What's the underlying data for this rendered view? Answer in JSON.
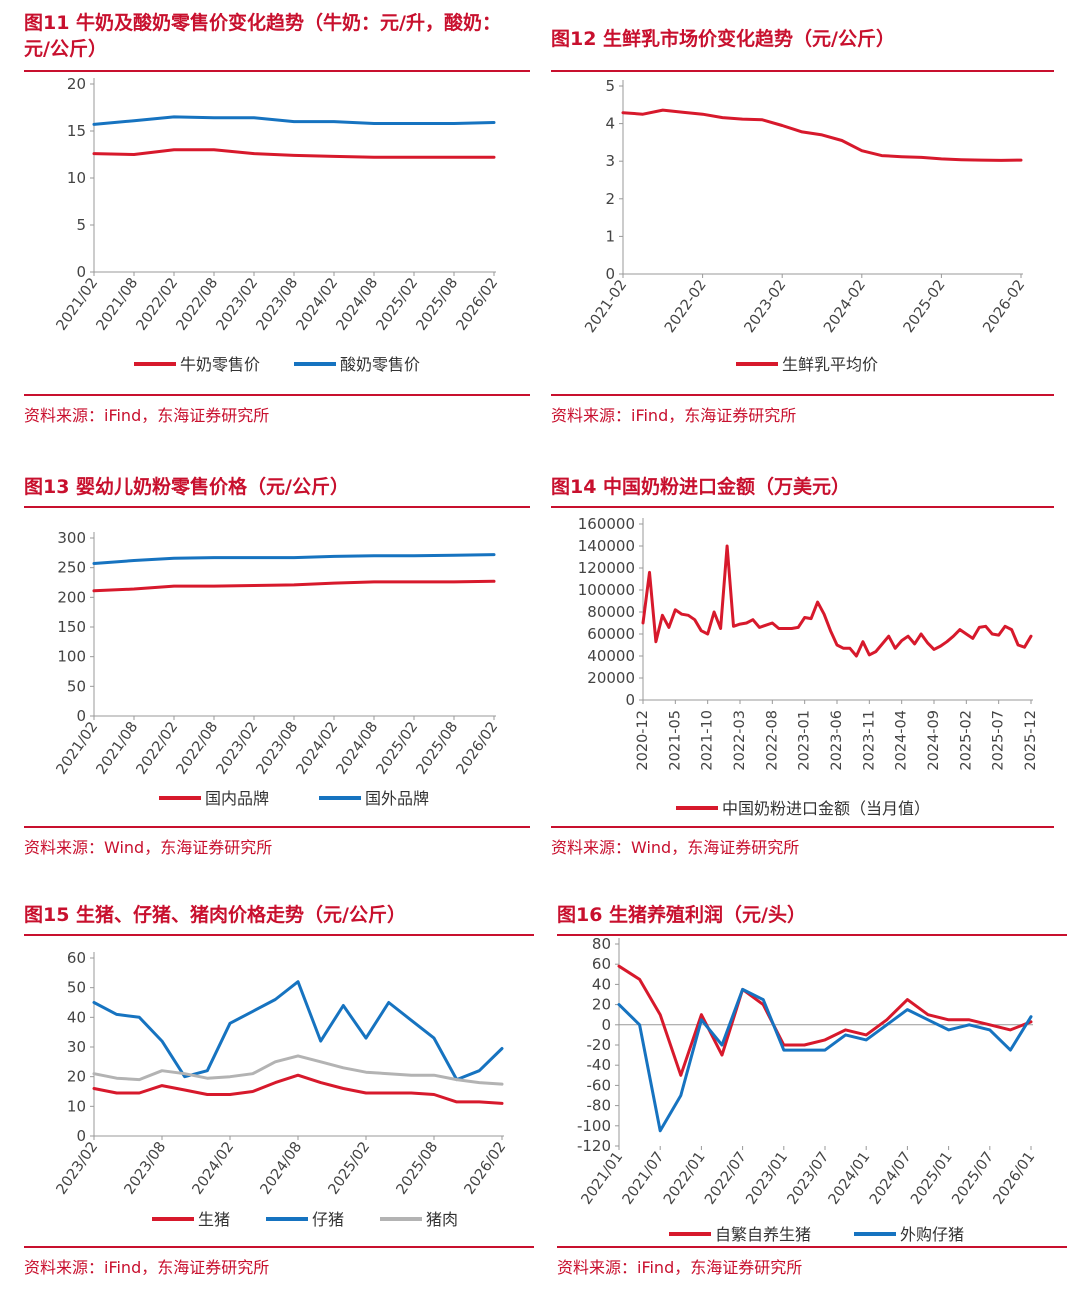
{
  "colors": {
    "accent": "#c8102e",
    "red": "#d7192c",
    "blue": "#1673c0",
    "gray": "#b3b3b3",
    "axis": "#999999"
  },
  "charts": [
    {
      "title": "图11  牛奶及酸奶零售价变化趋势（牛奶：元/升，酸奶：元/公斤）",
      "title_lines": [
        "图11  牛奶及酸奶零售价变化趋势（牛奶：元/升，酸奶：",
        "元/公斤）"
      ],
      "source": "资料来源：iFind，东海证券研究所",
      "chart_data": {
        "type": "line",
        "x": [
          "2021/02",
          "2021/08",
          "2022/02",
          "2022/08",
          "2023/02",
          "2023/08",
          "2024/02",
          "2024/08",
          "2025/02",
          "2025/08",
          "2026/02"
        ],
        "x_tick_labels": [
          "2021/02",
          "2021/08",
          "2022/02",
          "2022/08",
          "2023/02",
          "2023/08",
          "2024/02",
          "2024/08",
          "2025/02",
          "2025/08",
          "2026/02"
        ],
        "ylim": [
          0,
          20
        ],
        "y_ticks": [
          0,
          5,
          10,
          15,
          20
        ],
        "series": [
          {
            "name": "牛奶零售价",
            "color": "red",
            "values": [
              12.6,
              12.5,
              13.0,
              13.0,
              12.6,
              12.4,
              12.3,
              12.2,
              12.2,
              12.2,
              12.2
            ]
          },
          {
            "name": "酸奶零售价",
            "color": "blue",
            "values": [
              15.7,
              16.1,
              16.5,
              16.4,
              16.4,
              16.0,
              16.0,
              15.8,
              15.8,
              15.8,
              15.9
            ]
          }
        ]
      }
    },
    {
      "title": "图12  生鲜乳市场价变化趋势（元/公斤）",
      "title_lines": [
        "图12  生鲜乳市场价变化趋势（元/公斤）"
      ],
      "source": "资料来源：iFind，东海证券研究所",
      "chart_data": {
        "type": "line",
        "x": [
          "2021-02",
          "2021-05",
          "2021-08",
          "2021-11",
          "2022-02",
          "2022-05",
          "2022-08",
          "2022-11",
          "2023-02",
          "2023-05",
          "2023-08",
          "2023-11",
          "2024-02",
          "2024-05",
          "2024-08",
          "2024-11",
          "2025-02",
          "2025-05",
          "2025-08",
          "2025-11",
          "2026-02"
        ],
        "x_tick_labels": [
          "2021-02",
          "2022-02",
          "2023-02",
          "2024-02",
          "2025-02",
          "2026-02"
        ],
        "ylim": [
          0,
          5
        ],
        "y_ticks": [
          0,
          1,
          2,
          3,
          4,
          5
        ],
        "series": [
          {
            "name": "生鲜乳平均价",
            "color": "red",
            "values": [
              4.29,
              4.25,
              4.36,
              4.3,
              4.25,
              4.16,
              4.12,
              4.1,
              3.95,
              3.78,
              3.7,
              3.55,
              3.28,
              3.15,
              3.12,
              3.1,
              3.06,
              3.04,
              3.03,
              3.02,
              3.03
            ]
          }
        ]
      }
    },
    {
      "title": "图13  婴幼儿奶粉零售价格（元/公斤）",
      "title_lines": [
        "图13  婴幼儿奶粉零售价格（元/公斤）"
      ],
      "source": "资料来源：Wind，东海证券研究所",
      "chart_data": {
        "type": "line",
        "x": [
          "2021/02",
          "2021/08",
          "2022/02",
          "2022/08",
          "2023/02",
          "2023/08",
          "2024/02",
          "2024/08",
          "2025/02",
          "2025/08",
          "2026/02"
        ],
        "x_tick_labels": [
          "2021/02",
          "2021/08",
          "2022/02",
          "2022/08",
          "2023/02",
          "2023/08",
          "2024/02",
          "2024/08",
          "2025/02",
          "2025/08",
          "2026/02"
        ],
        "ylim": [
          0,
          300
        ],
        "y_ticks": [
          0,
          50,
          100,
          150,
          200,
          250,
          300
        ],
        "series": [
          {
            "name": "国内品牌",
            "color": "red",
            "values": [
              211,
              214,
              219,
              219,
              220,
              221,
              224,
              226,
              226,
              226,
              227
            ]
          },
          {
            "name": "国外品牌",
            "color": "blue",
            "values": [
              257,
              262,
              266,
              267,
              267,
              267,
              269,
              270,
              270,
              271,
              272
            ]
          }
        ]
      }
    },
    {
      "title": "图14  中国奶粉进口金额（万美元）",
      "title_lines": [
        "图14  中国奶粉进口金额（万美元）"
      ],
      "source": "资料来源：Wind，东海证券研究所",
      "chart_data": {
        "type": "line",
        "x": [
          "2020-12",
          "2021-01",
          "2021-02",
          "2021-03",
          "2021-04",
          "2021-05",
          "2021-06",
          "2021-07",
          "2021-08",
          "2021-09",
          "2021-10",
          "2021-11",
          "2021-12",
          "2022-01",
          "2022-02",
          "2022-03",
          "2022-04",
          "2022-05",
          "2022-06",
          "2022-07",
          "2022-08",
          "2022-09",
          "2022-10",
          "2022-11",
          "2022-12",
          "2023-01",
          "2023-02",
          "2023-03",
          "2023-04",
          "2023-05",
          "2023-06",
          "2023-07",
          "2023-08",
          "2023-09",
          "2023-10",
          "2023-11",
          "2023-12",
          "2024-01",
          "2024-02",
          "2024-03",
          "2024-04",
          "2024-05",
          "2024-06",
          "2024-07",
          "2024-08",
          "2024-09",
          "2024-10",
          "2024-11",
          "2024-12",
          "2025-01",
          "2025-02",
          "2025-03",
          "2025-04",
          "2025-05",
          "2025-06",
          "2025-07",
          "2025-08",
          "2025-09",
          "2025-10",
          "2025-11",
          "2025-12"
        ],
        "x_tick_labels": [
          "2020-12",
          "2021-05",
          "2021-10",
          "2022-03",
          "2022-08",
          "2023-01",
          "2023-06",
          "2023-11",
          "2024-04",
          "2024-09",
          "2025-02",
          "2025-07",
          "2025-12"
        ],
        "ylim": [
          0,
          160000
        ],
        "y_ticks": [
          0,
          20000,
          40000,
          60000,
          80000,
          100000,
          120000,
          140000,
          160000
        ],
        "series": [
          {
            "name": "中国奶粉进口金额（当月值）",
            "color": "red",
            "values": [
              70000,
              116000,
              53000,
              77000,
              66000,
              82000,
              78000,
              77000,
              73000,
              63000,
              60000,
              80000,
              65000,
              140000,
              67000,
              69000,
              70000,
              73000,
              66000,
              68000,
              70000,
              65000,
              65000,
              65000,
              66000,
              75000,
              74000,
              89000,
              78000,
              63000,
              50000,
              47000,
              47000,
              40000,
              53000,
              41000,
              44000,
              51000,
              58000,
              47000,
              54000,
              58000,
              51000,
              60000,
              52000,
              46000,
              49000,
              53000,
              58000,
              64000,
              60000,
              56000,
              66000,
              67000,
              60000,
              59000,
              67000,
              64000,
              50000,
              48000,
              58000
            ]
          }
        ]
      }
    },
    {
      "title": "图15  生猪、仔猪、猪肉价格走势（元/公斤）",
      "title_lines": [
        "图15  生猪、仔猪、猪肉价格走势（元/公斤）"
      ],
      "source": "资料来源：iFind，东海证券研究所",
      "chart_data": {
        "type": "line",
        "x": [
          "2023/02",
          "2023/04",
          "2023/06",
          "2023/08",
          "2023/10",
          "2023/12",
          "2024/02",
          "2024/04",
          "2024/06",
          "2024/08",
          "2024/10",
          "2024/12",
          "2025/02",
          "2025/04",
          "2025/06",
          "2025/08",
          "2025/10",
          "2025/12",
          "2026/02"
        ],
        "x_tick_labels": [
          "2023/02",
          "2023/08",
          "2024/02",
          "2024/08",
          "2025/02",
          "2025/08",
          "2026/02"
        ],
        "ylim": [
          0,
          60
        ],
        "y_ticks": [
          0,
          10,
          20,
          30,
          40,
          50,
          60
        ],
        "series": [
          {
            "name": "生猪",
            "color": "red",
            "values": [
              16,
              14.5,
              14.5,
              17,
              15.5,
              14,
              14,
              15,
              18,
              20.5,
              18,
              16,
              14.5,
              14.5,
              14.5,
              14,
              11.5,
              11.5,
              11
            ]
          },
          {
            "name": "仔猪",
            "color": "blue",
            "values": [
              45,
              41,
              40,
              32,
              20,
              22,
              38,
              42,
              46,
              52,
              32,
              44,
              33,
              45,
              39,
              33,
              19,
              22,
              29.5
            ]
          },
          {
            "name": "猪肉",
            "color": "gray",
            "values": [
              21,
              19.5,
              19,
              22,
              21,
              19.5,
              20,
              21,
              25,
              27,
              25,
              23,
              21.5,
              21,
              20.5,
              20.5,
              19,
              18,
              17.5
            ]
          }
        ]
      }
    },
    {
      "title": "图16  生猪养殖利润（元/头）",
      "title_lines": [
        "图16  生猪养殖利润（元/头）"
      ],
      "source": "资料来源：iFind，东海证券研究所",
      "chart_data": {
        "type": "line",
        "x": [
          "2021/01",
          "2021/04",
          "2021/07",
          "2021/10",
          "2022/01",
          "2022/04",
          "2022/07",
          "2022/10",
          "2023/01",
          "2023/04",
          "2023/07",
          "2023/10",
          "2024/01",
          "2024/04",
          "2024/07",
          "2024/10",
          "2025/01",
          "2025/04",
          "2025/07",
          "2025/10",
          "2026/01"
        ],
        "x_tick_labels": [
          "2021/01",
          "2021/07",
          "2022/01",
          "2022/07",
          "2023/01",
          "2023/07",
          "2024/01",
          "2024/07",
          "2025/01",
          "2025/07",
          "2026/01"
        ],
        "ylim": [
          -120,
          80
        ],
        "y_ticks": [
          -120,
          -100,
          -80,
          -60,
          -40,
          -20,
          0,
          20,
          40,
          60,
          80
        ],
        "series": [
          {
            "name": "自繁自养生猪",
            "color": "red",
            "values": [
              58,
              45,
              10,
              -50,
              10,
              -30,
              35,
              20,
              -20,
              -20,
              -15,
              -5,
              -10,
              5,
              25,
              10,
              5,
              5,
              0,
              -5,
              3
            ]
          },
          {
            "name": "外购仔猪",
            "color": "blue",
            "values": [
              20,
              0,
              -105,
              -70,
              5,
              -20,
              35,
              25,
              -25,
              -25,
              -25,
              -10,
              -15,
              0,
              15,
              5,
              -5,
              0,
              -5,
              -25,
              8
            ]
          }
        ]
      }
    }
  ]
}
